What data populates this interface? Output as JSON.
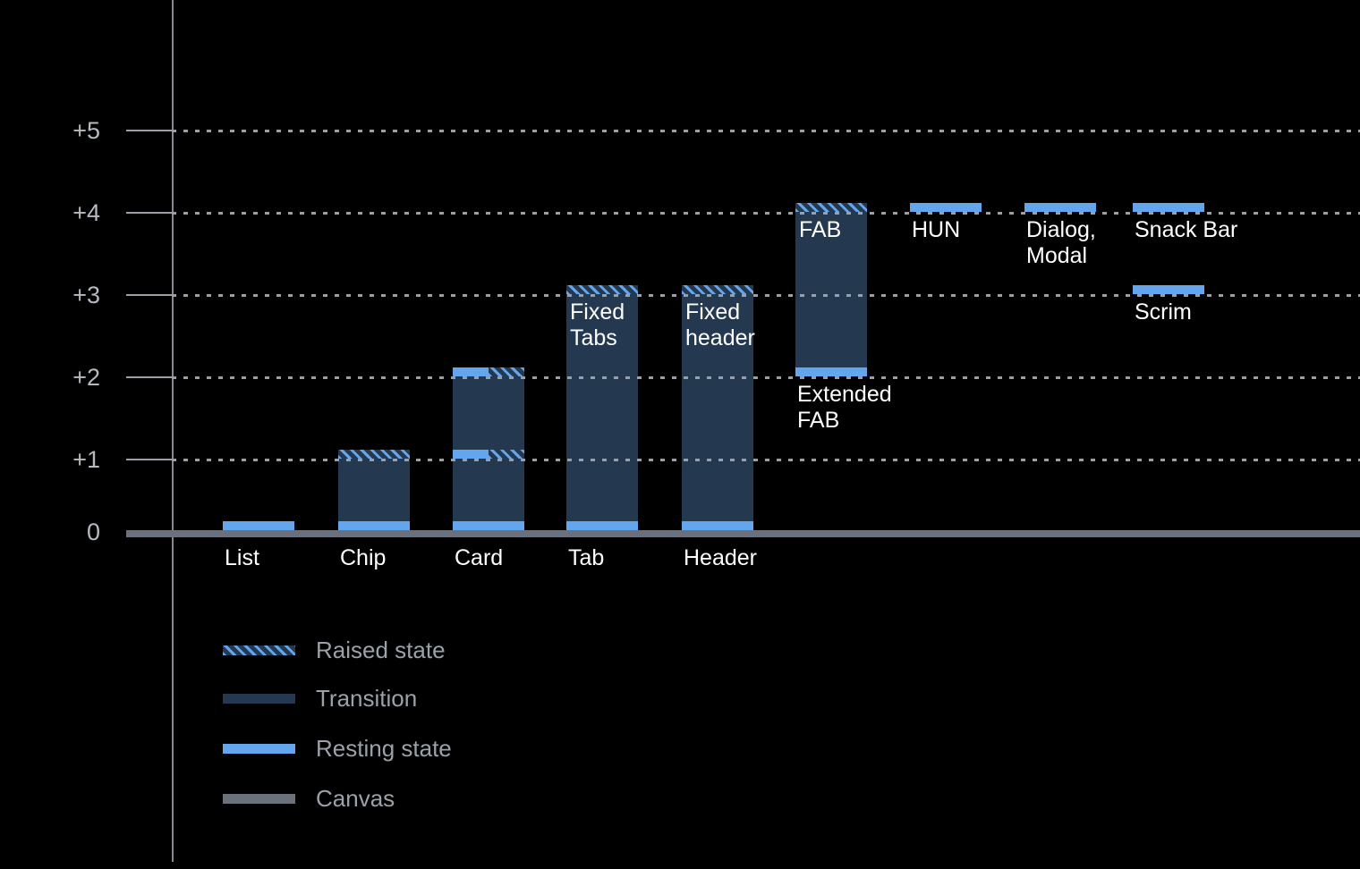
{
  "chart_data": {
    "type": "bar",
    "title": "",
    "ylim": [
      0,
      5
    ],
    "y_axis": {
      "ticks": [
        {
          "value": 5,
          "label": "+5"
        },
        {
          "value": 4,
          "label": "+4"
        },
        {
          "value": 3,
          "label": "+3"
        },
        {
          "value": 2,
          "label": "+2"
        },
        {
          "value": 1,
          "label": "+1"
        },
        {
          "value": 0,
          "label": "0"
        }
      ],
      "gridlines": "dotted-horizontal"
    },
    "columns": [
      {
        "name": "list",
        "axis_label": "List",
        "segments": [
          {
            "kind": "resting",
            "at": 0
          }
        ]
      },
      {
        "name": "chip",
        "axis_label": "Chip",
        "segments": [
          {
            "kind": "transition",
            "from": 0,
            "to": 1
          },
          {
            "kind": "raised",
            "at": 1
          },
          {
            "kind": "resting",
            "at": 0
          }
        ]
      },
      {
        "name": "card",
        "axis_label": "Card",
        "segments": [
          {
            "kind": "transition",
            "from": 0,
            "to": 2
          },
          {
            "kind": "resting-raised",
            "at": 2
          },
          {
            "kind": "resting-raised",
            "at": 1
          },
          {
            "kind": "resting",
            "at": 0
          }
        ]
      },
      {
        "name": "tab",
        "axis_label": "Tab",
        "inner_label": "Fixed\nTabs",
        "segments": [
          {
            "kind": "transition",
            "from": 0,
            "to": 3
          },
          {
            "kind": "raised",
            "at": 3
          },
          {
            "kind": "resting",
            "at": 0
          }
        ]
      },
      {
        "name": "header",
        "axis_label": "Header",
        "inner_label": "Fixed\nheader",
        "segments": [
          {
            "kind": "transition",
            "from": 0,
            "to": 3
          },
          {
            "kind": "raised",
            "at": 3
          },
          {
            "kind": "resting",
            "at": 0
          }
        ]
      },
      {
        "name": "fab",
        "inner_label": "FAB",
        "segments": [
          {
            "kind": "transition",
            "from": 2,
            "to": 4
          },
          {
            "kind": "raised",
            "at": 4
          },
          {
            "kind": "resting",
            "at": 2,
            "label": "Extended\nFAB"
          }
        ]
      },
      {
        "name": "hun",
        "segments": [
          {
            "kind": "resting",
            "at": 4,
            "label": "HUN"
          }
        ]
      },
      {
        "name": "dialog-modal",
        "segments": [
          {
            "kind": "resting",
            "at": 4,
            "label": "Dialog,\nModal"
          }
        ]
      },
      {
        "name": "snackbar-scrim",
        "segments": [
          {
            "kind": "resting",
            "at": 4,
            "label": "Snack Bar"
          },
          {
            "kind": "resting",
            "at": 3,
            "label": "Scrim"
          }
        ]
      }
    ],
    "legend": {
      "position": "bottom-left",
      "items": [
        {
          "kind": "raised",
          "label": "Raised state"
        },
        {
          "kind": "transition",
          "label": "Transition"
        },
        {
          "kind": "resting",
          "label": "Resting state"
        },
        {
          "kind": "canvas",
          "label": "Canvas"
        }
      ]
    }
  },
  "colors": {
    "background": "#000000",
    "transition": "#24384f",
    "resting": "#64a6ee",
    "canvas": "#6a717c",
    "axis_line": "#87898f",
    "gridline": "#9aa0a6",
    "y_tick_label": "#b6bac0",
    "legend_text": "#9aa1a8",
    "bar_label": "#ffffff"
  }
}
